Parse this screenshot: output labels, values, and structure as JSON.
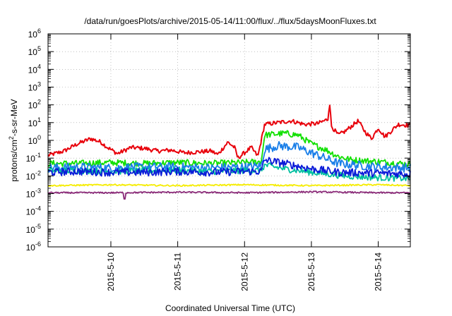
{
  "chart_data": {
    "type": "line",
    "title": "/data/run/goesPlots/archive/2015-05-14/11:00/flux/../flux/5daysMoonFluxes.txt",
    "xlabel": "Coordinated Universal Time (UTC)",
    "ylabel": {
      "prefix": "protons/cm",
      "sup": "2",
      "suffix": "-s-sr-MeV"
    },
    "y_scale": "log",
    "ylim_exp": [
      -6,
      6
    ],
    "y_tick_base": "10",
    "y_tick_exponents": [
      "6",
      "5",
      "4",
      "3",
      "2",
      "1",
      "0",
      "-1",
      "-2",
      "-3",
      "-4",
      "-5",
      "-6"
    ],
    "xlim_days": [
      9.06,
      14.48
    ],
    "x_ticks": [
      {
        "day": 10,
        "label": "2015-5-10"
      },
      {
        "day": 11,
        "label": "2015-5-11"
      },
      {
        "day": 12,
        "label": "2015-5-12"
      },
      {
        "day": 13,
        "label": "2015-5-13"
      },
      {
        "day": 14,
        "label": "2015-5-14"
      }
    ],
    "grid": true,
    "series": [
      {
        "color": "#e8000b",
        "anchors": [
          [
            9.06,
            -0.85
          ],
          [
            9.3,
            -0.6
          ],
          [
            9.5,
            -0.2
          ],
          [
            9.7,
            0.1
          ],
          [
            9.85,
            -0.1
          ],
          [
            9.95,
            -0.4
          ],
          [
            10.1,
            -0.75
          ],
          [
            10.3,
            -0.4
          ],
          [
            10.5,
            -0.45
          ],
          [
            10.7,
            -0.6
          ],
          [
            10.9,
            -0.55
          ],
          [
            11.1,
            -0.7
          ],
          [
            11.3,
            -0.65
          ],
          [
            11.5,
            -0.6
          ],
          [
            11.6,
            -0.8
          ],
          [
            11.75,
            -0.1
          ],
          [
            11.85,
            -0.4
          ],
          [
            11.9,
            -1.0
          ],
          [
            12.0,
            -0.7
          ],
          [
            12.1,
            -0.4
          ],
          [
            12.2,
            -0.9
          ],
          [
            12.3,
            0.9
          ],
          [
            12.5,
            1.0
          ],
          [
            12.7,
            1.1
          ],
          [
            12.9,
            0.9
          ],
          [
            13.1,
            0.95
          ],
          [
            13.25,
            1.2
          ],
          [
            13.27,
            2.25
          ],
          [
            13.3,
            0.8
          ],
          [
            13.4,
            0.3
          ],
          [
            13.5,
            0.5
          ],
          [
            13.6,
            0.8
          ],
          [
            13.7,
            1.1
          ],
          [
            13.8,
            0.5
          ],
          [
            13.9,
            0.1
          ],
          [
            14.0,
            0.7
          ],
          [
            14.1,
            0.2
          ],
          [
            14.3,
            0.9
          ],
          [
            14.48,
            0.85
          ]
        ],
        "noise": 0.12,
        "spikes": []
      },
      {
        "color": "#10e000",
        "anchors": [
          [
            9.06,
            -1.3
          ],
          [
            9.5,
            -1.3
          ],
          [
            10.0,
            -1.25
          ],
          [
            10.5,
            -1.3
          ],
          [
            11.0,
            -1.25
          ],
          [
            11.5,
            -1.3
          ],
          [
            12.0,
            -1.25
          ],
          [
            12.25,
            -1.2
          ],
          [
            12.3,
            0.3
          ],
          [
            12.6,
            0.4
          ],
          [
            12.8,
            0.3
          ],
          [
            13.0,
            -0.2
          ],
          [
            13.2,
            -0.5
          ],
          [
            13.4,
            -0.9
          ],
          [
            13.6,
            -1.1
          ],
          [
            14.0,
            -1.2
          ],
          [
            14.48,
            -1.35
          ]
        ],
        "noise": 0.18,
        "spikes": []
      },
      {
        "color": "#1a7fe8",
        "anchors": [
          [
            9.06,
            -1.55
          ],
          [
            9.5,
            -1.5
          ],
          [
            10.0,
            -1.55
          ],
          [
            10.5,
            -1.5
          ],
          [
            11.0,
            -1.5
          ],
          [
            11.5,
            -1.55
          ],
          [
            12.0,
            -1.5
          ],
          [
            12.25,
            -1.45
          ],
          [
            12.3,
            -0.5
          ],
          [
            12.5,
            -0.3
          ],
          [
            12.8,
            -0.4
          ],
          [
            13.0,
            -0.7
          ],
          [
            13.2,
            -1.0
          ],
          [
            13.4,
            -1.3
          ],
          [
            13.7,
            -1.4
          ],
          [
            14.0,
            -1.5
          ],
          [
            14.48,
            -1.55
          ]
        ],
        "noise": 0.25,
        "spikes": []
      },
      {
        "color": "#00c0a0",
        "anchors": [
          [
            9.06,
            -1.7
          ],
          [
            9.5,
            -1.7
          ],
          [
            10.0,
            -1.75
          ],
          [
            10.5,
            -1.7
          ],
          [
            11.0,
            -1.7
          ],
          [
            11.5,
            -1.75
          ],
          [
            12.0,
            -1.7
          ],
          [
            12.25,
            -1.7
          ],
          [
            12.3,
            -1.4
          ],
          [
            12.6,
            -1.6
          ],
          [
            13.0,
            -1.8
          ],
          [
            13.5,
            -2.0
          ],
          [
            14.0,
            -2.1
          ],
          [
            14.48,
            -2.15
          ]
        ],
        "noise": 0.18,
        "spikes": []
      },
      {
        "color": "#0a1ad8",
        "anchors": [
          [
            9.06,
            -1.8
          ],
          [
            9.5,
            -1.75
          ],
          [
            10.0,
            -1.8
          ],
          [
            10.5,
            -1.8
          ],
          [
            11.0,
            -1.75
          ],
          [
            11.5,
            -1.8
          ],
          [
            12.0,
            -1.75
          ],
          [
            12.25,
            -1.75
          ],
          [
            12.3,
            -1.1
          ],
          [
            12.6,
            -1.3
          ],
          [
            13.0,
            -1.6
          ],
          [
            13.4,
            -1.8
          ],
          [
            14.0,
            -1.85
          ],
          [
            14.48,
            -1.9
          ]
        ],
        "noise": 0.22,
        "spikes": []
      },
      {
        "color": "#f5ec00",
        "anchors": [
          [
            9.06,
            -2.55
          ],
          [
            10.0,
            -2.5
          ],
          [
            11.0,
            -2.55
          ],
          [
            12.0,
            -2.5
          ],
          [
            13.0,
            -2.55
          ],
          [
            14.0,
            -2.5
          ],
          [
            14.48,
            -2.55
          ]
        ],
        "noise": 0.04,
        "spikes": []
      },
      {
        "color": "#8a2a78",
        "anchors": [
          [
            9.06,
            -2.95
          ],
          [
            10.0,
            -2.95
          ],
          [
            11.0,
            -2.92
          ],
          [
            12.0,
            -2.95
          ],
          [
            13.0,
            -2.9
          ],
          [
            14.0,
            -2.95
          ],
          [
            14.48,
            -2.95
          ]
        ],
        "noise": 0.04,
        "spikes": [
          [
            10.2,
            -3.3
          ]
        ]
      }
    ]
  }
}
